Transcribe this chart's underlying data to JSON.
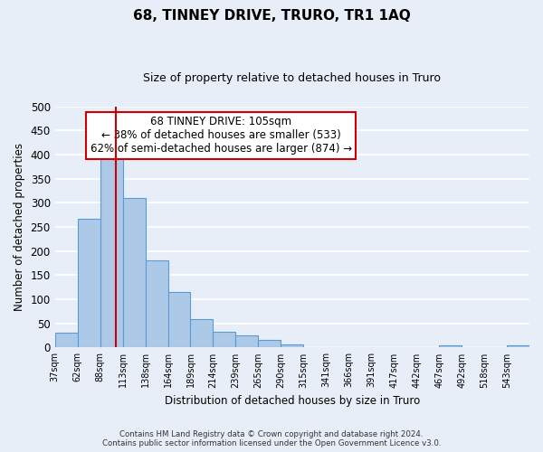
{
  "title": "68, TINNEY DRIVE, TRURO, TR1 1AQ",
  "subtitle": "Size of property relative to detached houses in Truro",
  "xlabel": "Distribution of detached houses by size in Truro",
  "ylabel": "Number of detached properties",
  "bin_labels": [
    "37sqm",
    "62sqm",
    "88sqm",
    "113sqm",
    "138sqm",
    "164sqm",
    "189sqm",
    "214sqm",
    "239sqm",
    "265sqm",
    "290sqm",
    "315sqm",
    "341sqm",
    "366sqm",
    "391sqm",
    "417sqm",
    "442sqm",
    "467sqm",
    "492sqm",
    "518sqm",
    "543sqm"
  ],
  "bar_values": [
    30,
    268,
    393,
    311,
    180,
    115,
    59,
    33,
    26,
    15,
    7,
    0,
    0,
    0,
    0,
    0,
    0,
    5,
    0,
    0,
    5
  ],
  "bar_color": "#adc9e8",
  "bar_edge_color": "#5b9bd5",
  "vline_color": "#cc0000",
  "annotation_text": "68 TINNEY DRIVE: 105sqm\n← 38% of detached houses are smaller (533)\n62% of semi-detached houses are larger (874) →",
  "annotation_box_color": "#ffffff",
  "annotation_box_edge": "#cc0000",
  "ylim": [
    0,
    500
  ],
  "yticks": [
    0,
    50,
    100,
    150,
    200,
    250,
    300,
    350,
    400,
    450,
    500
  ],
  "footer_line1": "Contains HM Land Registry data © Crown copyright and database right 2024.",
  "footer_line2": "Contains public sector information licensed under the Open Government Licence v3.0.",
  "bg_color": "#e8eef8",
  "grid_color": "#ffffff",
  "vline_pos": 2.68
}
